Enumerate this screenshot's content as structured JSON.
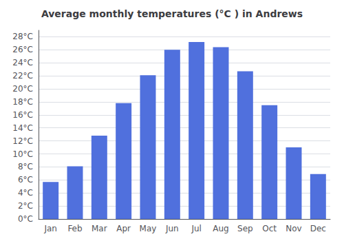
{
  "chart_data": {
    "type": "bar",
    "title": "Average monthly temperatures (°C ) in Andrews",
    "categories": [
      "Jan",
      "Feb",
      "Mar",
      "Apr",
      "May",
      "Jun",
      "Jul",
      "Aug",
      "Sep",
      "Oct",
      "Nov",
      "Dec"
    ],
    "values": [
      5.7,
      8.1,
      12.8,
      17.8,
      22.1,
      26.0,
      27.2,
      26.4,
      22.7,
      17.5,
      11.0,
      6.9
    ],
    "ylim": [
      0,
      29
    ],
    "yticks": [
      {
        "value": 0,
        "label": "0°C"
      },
      {
        "value": 2,
        "label": "2°C"
      },
      {
        "value": 4,
        "label": "4°C"
      },
      {
        "value": 6,
        "label": "6°C"
      },
      {
        "value": 8,
        "label": "8°C"
      },
      {
        "value": 10,
        "label": "10°C"
      },
      {
        "value": 12,
        "label": "12°C"
      },
      {
        "value": 14,
        "label": "14°C"
      },
      {
        "value": 16,
        "label": "16°C"
      },
      {
        "value": 18,
        "label": "18°C"
      },
      {
        "value": 20,
        "label": "20°C"
      },
      {
        "value": 22,
        "label": "22°C"
      },
      {
        "value": 24,
        "label": "24°C"
      },
      {
        "value": 26,
        "label": "26°C"
      },
      {
        "value": 28,
        "label": "28°C"
      }
    ],
    "grid": true
  }
}
